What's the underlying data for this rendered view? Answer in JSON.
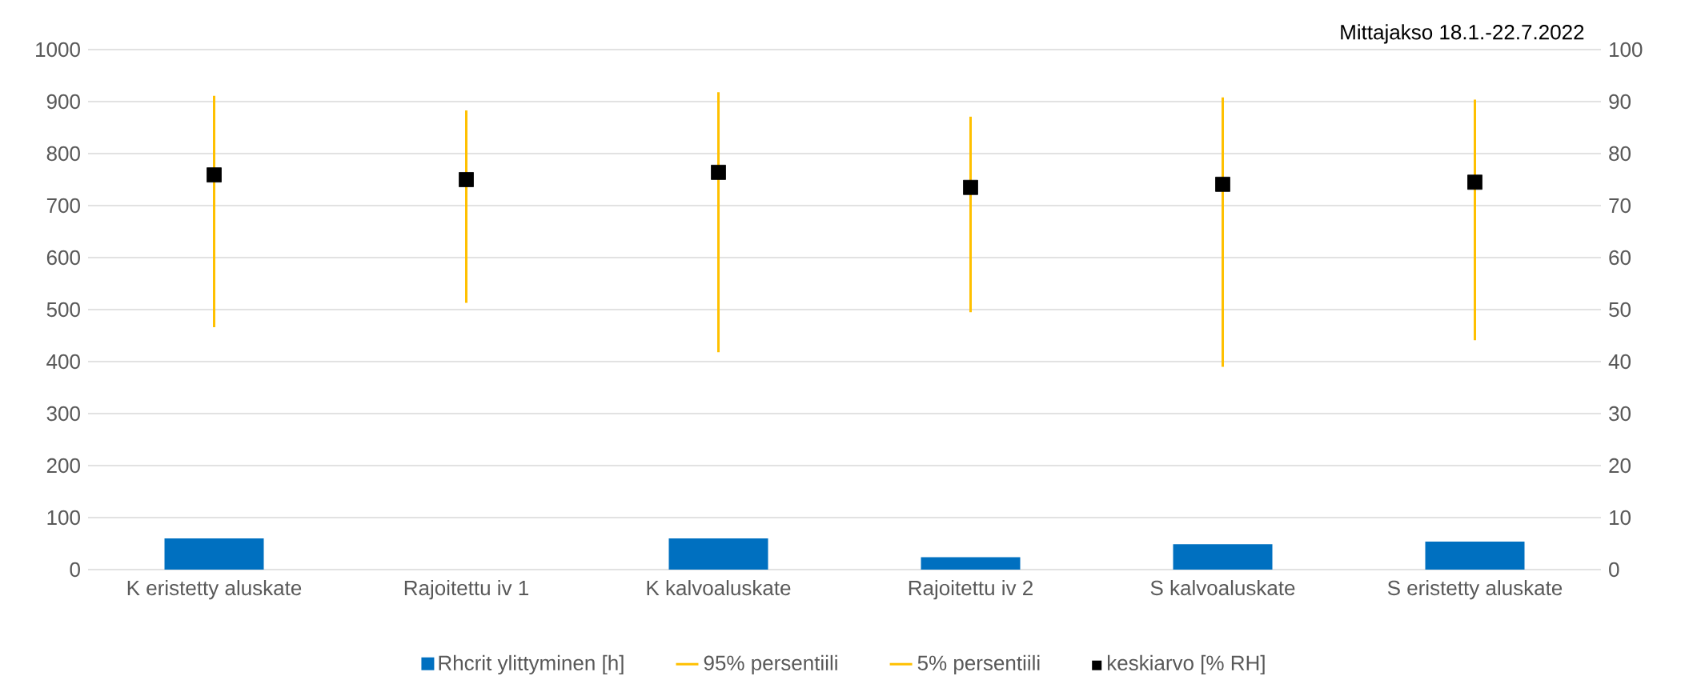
{
  "chart_data": {
    "type": "bar",
    "categories": [
      "K eristetty aluskate",
      "Rajoitettu iv 1",
      "K kalvoaluskate",
      "Rajoitettu iv 2",
      "S kalvoaluskate",
      "S eristetty aluskate"
    ],
    "series": [
      {
        "name": "Rhcrit ylittyminen [h]",
        "color": "#0070c0",
        "values": [
          60,
          0,
          60,
          24,
          49,
          54
        ]
      },
      {
        "name": "95% persentiili",
        "type": "line",
        "axis": "y2",
        "color": "#ffc000",
        "values": [
          null,
          null,
          null,
          null,
          null,
          null
        ]
      },
      {
        "name": "5% persentiili",
        "type": "line",
        "axis": "y2",
        "color": "#ffc000",
        "values": [
          null,
          null,
          null,
          null,
          null,
          null
        ]
      },
      {
        "name": "keskiarvo [% RH]",
        "type": "scatter",
        "axis": "y2",
        "color": "#000000",
        "marker": "square",
        "values": [
          75.9,
          75.0,
          76.4,
          73.5,
          74.1,
          74.5
        ],
        "errors": [
          [
            46.6,
            91.1
          ],
          [
            51.3,
            88.3
          ],
          [
            41.8,
            91.8
          ],
          [
            49.5,
            87.1
          ],
          [
            39.0,
            90.8
          ],
          [
            44.1,
            90.4
          ]
        ]
      }
    ],
    "ylim": [
      0,
      1000
    ],
    "yticks": [
      0,
      100,
      200,
      300,
      400,
      500,
      600,
      700,
      800,
      900,
      1000
    ],
    "y2lim": [
      0,
      100
    ],
    "y2ticks": [
      0,
      10,
      20,
      30,
      40,
      50,
      60,
      70,
      80,
      90,
      100
    ],
    "grid": "y",
    "legend": "bottom",
    "annotations": [
      "Mittajakso 18.1.-22.7.2022"
    ]
  }
}
